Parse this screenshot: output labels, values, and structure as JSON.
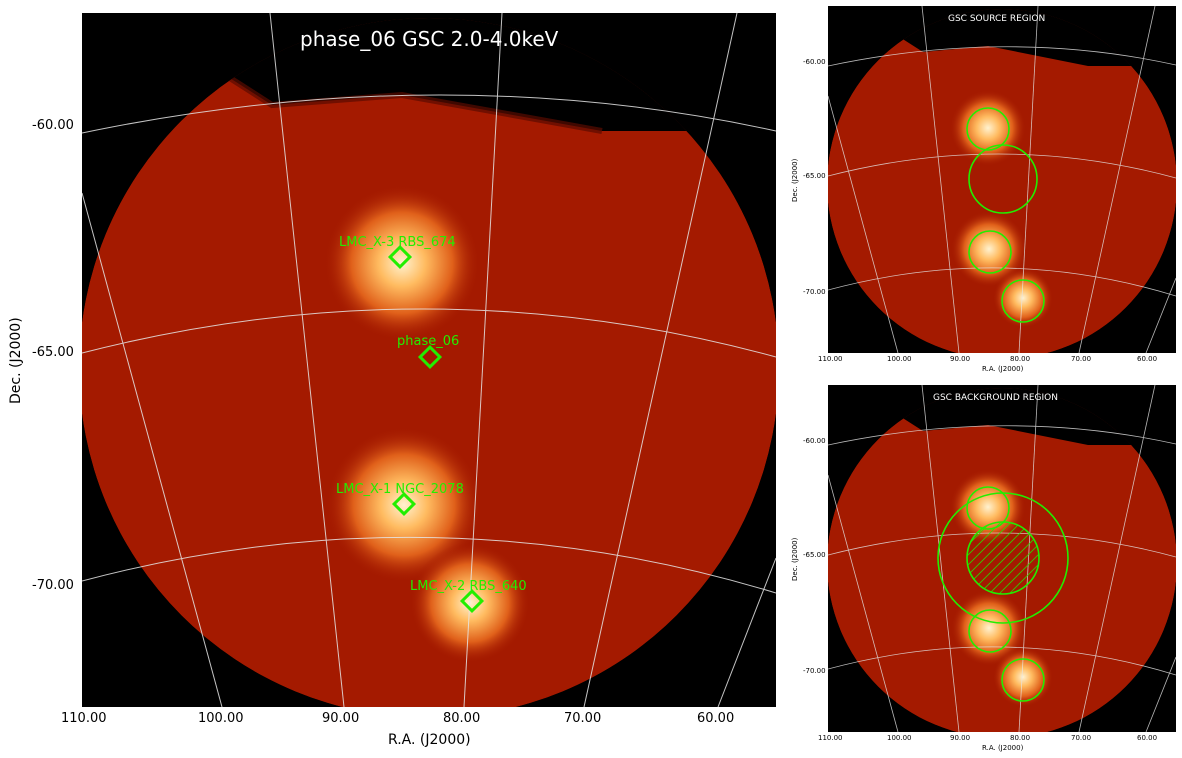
{
  "main": {
    "title": "phase_06 GSC 2.0-4.0keV",
    "xlabel": "R.A. (J2000)",
    "ylabel": "Dec. (J2000)",
    "xticks": [
      "110.00",
      "100.00",
      "90.00",
      "80.00",
      "70.00",
      "60.00"
    ],
    "yticks": [
      "-60.00",
      "-65.00",
      "-70.00"
    ],
    "sources": [
      {
        "label": "LMC_X-3 RBS_674"
      },
      {
        "label": "phase_06"
      },
      {
        "label": "LMC_X-1 NGC_2078"
      },
      {
        "label": "LMC_X-2 RBS_640"
      }
    ]
  },
  "source_panel": {
    "title": "GSC SOURCE REGION",
    "xlabel": "R.A. (J2000)",
    "ylabel": "Dec. (J2000)",
    "xticks": [
      "110.00",
      "100.00",
      "90.00",
      "80.00",
      "70.00",
      "60.00"
    ],
    "yticks": [
      "-60.00",
      "-65.00",
      "-70.00"
    ]
  },
  "background_panel": {
    "title": "GSC BACKGROUND REGION",
    "xlabel": "R.A. (J2000)",
    "ylabel": "Dec. (J2000)",
    "xticks": [
      "110.00",
      "100.00",
      "90.00",
      "80.00",
      "70.00",
      "60.00"
    ],
    "yticks": [
      "-60.00",
      "-65.00",
      "-70.00"
    ]
  },
  "colors": {
    "background": "#000000",
    "disk": "#a41a00",
    "region": "#22ee00",
    "grid": "#e6e6e6"
  }
}
